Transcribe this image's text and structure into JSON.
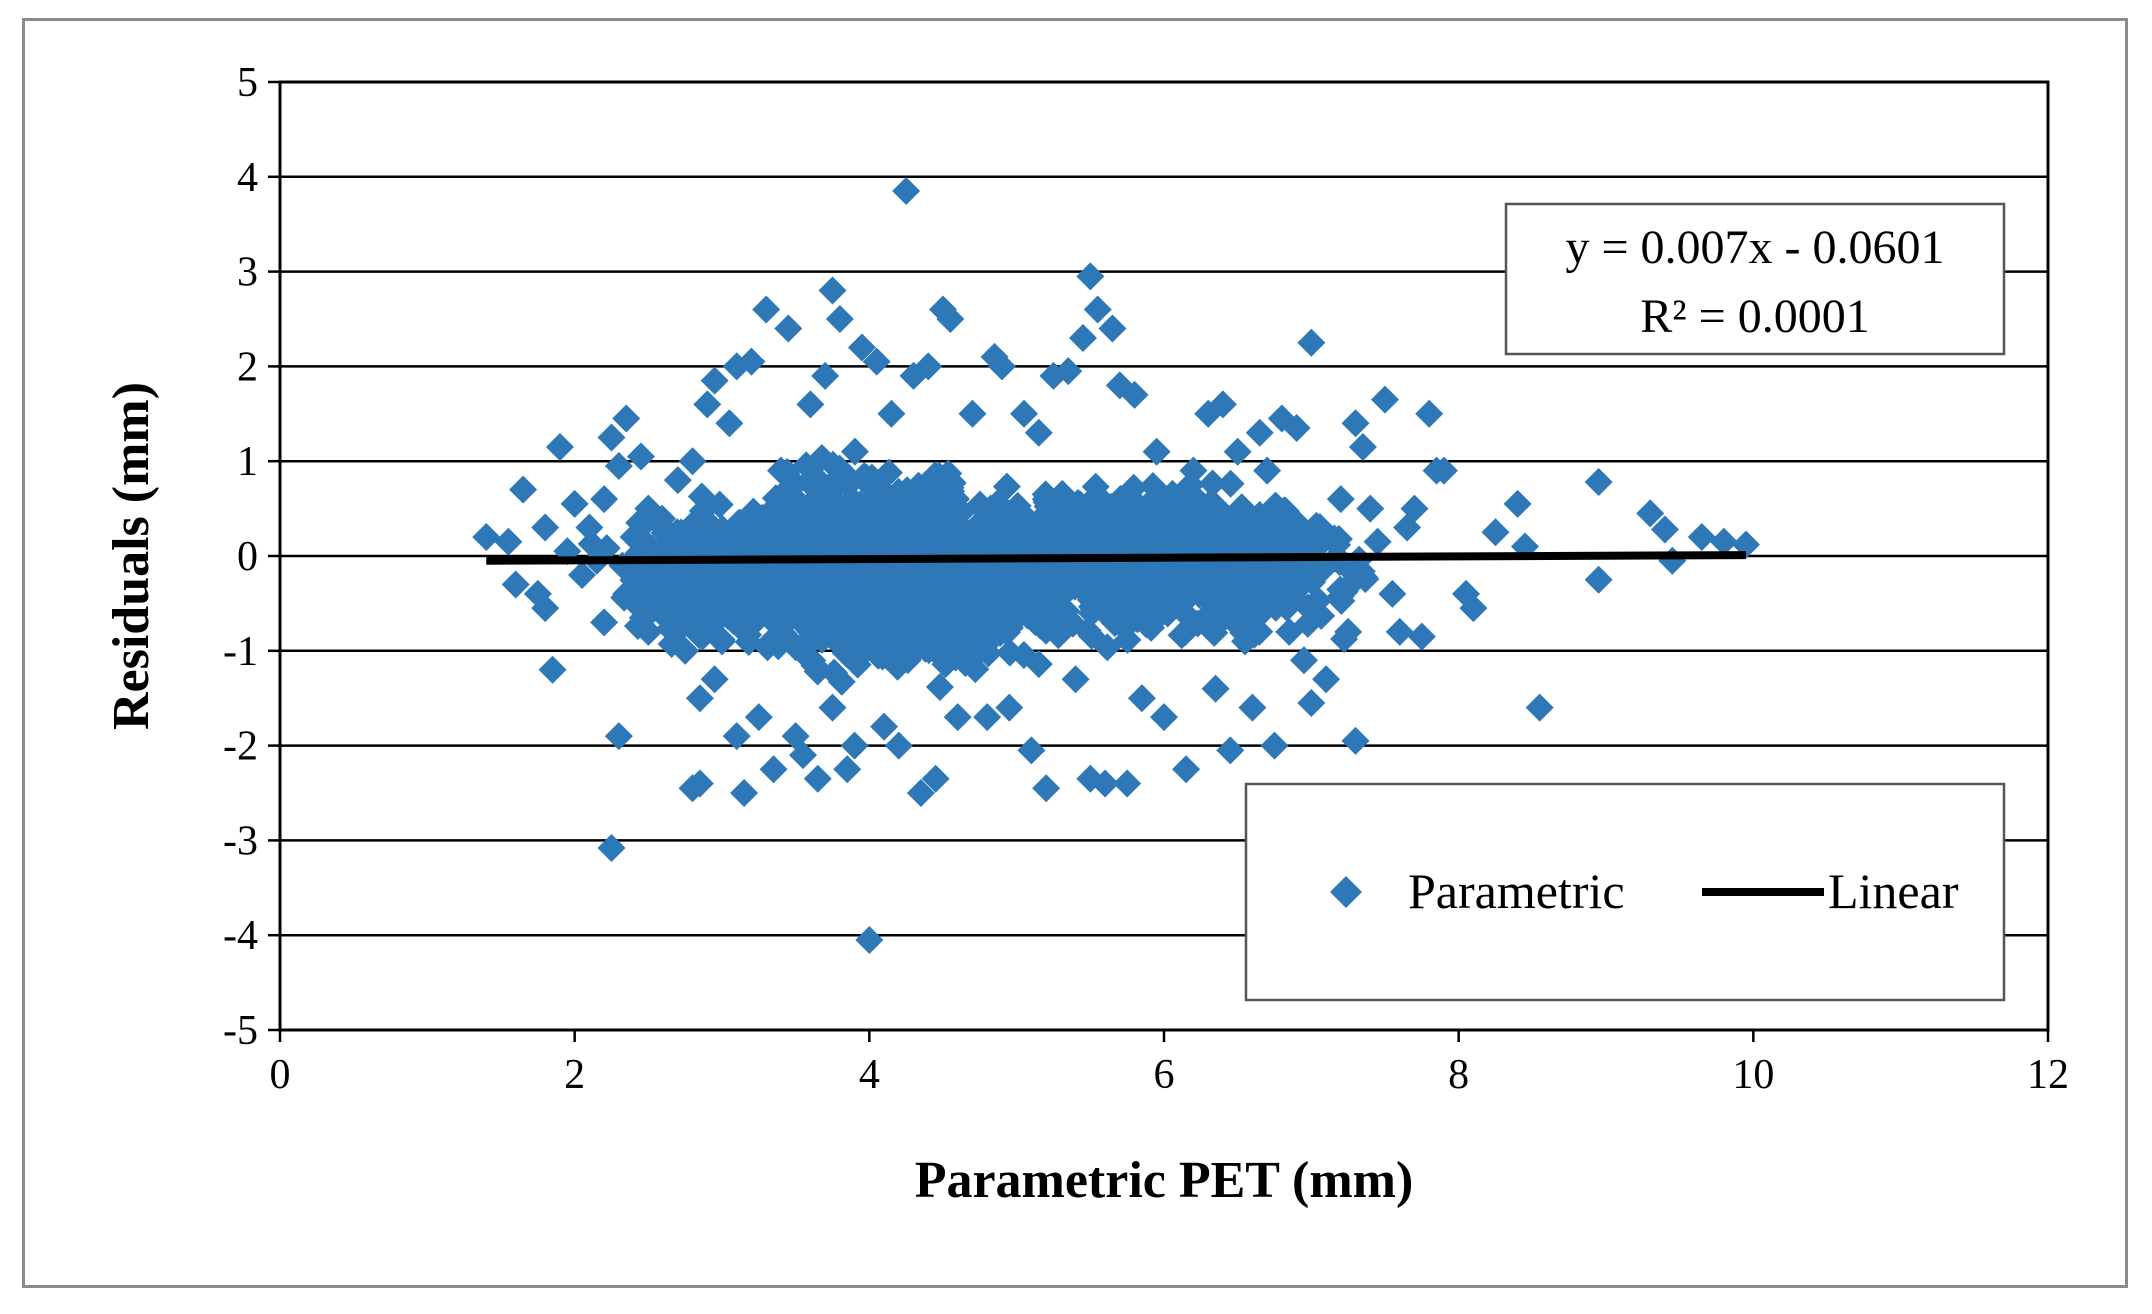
{
  "chart_data": {
    "type": "scatter",
    "xlabel": "Parametric PET (mm)",
    "ylabel": "Residuals (mm)",
    "xlim": [
      0,
      12
    ],
    "ylim": [
      -5,
      5
    ],
    "x_ticks": [
      0,
      2,
      4,
      6,
      8,
      10,
      12
    ],
    "y_ticks": [
      -5,
      -4,
      -3,
      -2,
      -1,
      0,
      1,
      2,
      3,
      4,
      5
    ],
    "grid": "horizontal",
    "legend_position": "bottom-right",
    "trendline": {
      "name": "Linear",
      "equation": "y = 0.007x - 0.0601",
      "r_squared": "R² = 0.0001",
      "slope": 0.007,
      "intercept": -0.0601,
      "x_range": [
        1.4,
        9.95
      ],
      "color": "#000000"
    },
    "series": [
      {
        "name": "Parametric",
        "marker": "diamond",
        "color": "#2E78B8",
        "points": [
          [
            1.4,
            0.2
          ],
          [
            1.55,
            0.15
          ],
          [
            1.6,
            -0.3
          ],
          [
            1.65,
            0.7
          ],
          [
            1.75,
            -0.4
          ],
          [
            1.8,
            0.3
          ],
          [
            1.8,
            -0.55
          ],
          [
            1.85,
            -1.2
          ],
          [
            1.9,
            1.15
          ],
          [
            1.95,
            0.05
          ],
          [
            2.0,
            0.55
          ],
          [
            2.05,
            -0.2
          ],
          [
            2.1,
            0.3
          ],
          [
            2.15,
            -0.05
          ],
          [
            2.2,
            -0.7
          ],
          [
            2.2,
            0.6
          ],
          [
            2.25,
            1.25
          ],
          [
            2.25,
            -3.08
          ],
          [
            2.3,
            -1.9
          ],
          [
            2.3,
            0.95
          ],
          [
            2.35,
            1.45
          ],
          [
            2.35,
            -0.4
          ],
          [
            2.4,
            0.2
          ],
          [
            2.45,
            1.05
          ],
          [
            2.5,
            -0.8
          ],
          [
            2.5,
            0.5
          ],
          [
            2.55,
            -0.1
          ],
          [
            2.6,
            0.3
          ],
          [
            2.65,
            -0.6
          ],
          [
            2.7,
            0.8
          ],
          [
            2.75,
            -1.0
          ],
          [
            2.8,
            -2.45
          ],
          [
            2.8,
            1.0
          ],
          [
            2.85,
            -1.5
          ],
          [
            2.85,
            -2.4
          ],
          [
            2.9,
            1.6
          ],
          [
            2.95,
            1.85
          ],
          [
            2.95,
            -1.3
          ],
          [
            3.0,
            -0.9
          ],
          [
            3.05,
            1.4
          ],
          [
            3.1,
            2.0
          ],
          [
            3.1,
            -1.9
          ],
          [
            3.15,
            -2.5
          ],
          [
            3.2,
            2.05
          ],
          [
            3.25,
            -1.7
          ],
          [
            3.3,
            2.6
          ],
          [
            3.35,
            -2.25
          ],
          [
            3.4,
            0.9
          ],
          [
            3.45,
            2.4
          ],
          [
            3.5,
            -1.9
          ],
          [
            3.55,
            -2.1
          ],
          [
            3.6,
            1.6
          ],
          [
            3.65,
            -2.35
          ],
          [
            3.7,
            1.9
          ],
          [
            3.75,
            2.8
          ],
          [
            3.75,
            -1.6
          ],
          [
            3.8,
            2.5
          ],
          [
            3.85,
            -2.25
          ],
          [
            3.9,
            -2.0
          ],
          [
            3.95,
            2.2
          ],
          [
            4.0,
            -4.05
          ],
          [
            4.05,
            2.05
          ],
          [
            4.1,
            -1.8
          ],
          [
            4.15,
            1.5
          ],
          [
            4.2,
            -2.0
          ],
          [
            4.25,
            3.85
          ],
          [
            4.3,
            1.9
          ],
          [
            4.35,
            -2.5
          ],
          [
            4.4,
            2.0
          ],
          [
            4.45,
            -2.35
          ],
          [
            4.5,
            2.6
          ],
          [
            4.55,
            2.5
          ],
          [
            4.6,
            -1.7
          ],
          [
            4.7,
            1.5
          ],
          [
            4.8,
            -1.7
          ],
          [
            4.85,
            2.1
          ],
          [
            4.9,
            2.0
          ],
          [
            4.95,
            -1.6
          ],
          [
            5.05,
            1.5
          ],
          [
            5.1,
            -2.05
          ],
          [
            5.15,
            1.3
          ],
          [
            5.2,
            -2.45
          ],
          [
            5.25,
            1.9
          ],
          [
            5.35,
            1.95
          ],
          [
            5.4,
            -1.3
          ],
          [
            5.45,
            2.3
          ],
          [
            5.5,
            2.95
          ],
          [
            5.5,
            -2.35
          ],
          [
            5.55,
            2.6
          ],
          [
            5.6,
            -2.4
          ],
          [
            5.65,
            2.4
          ],
          [
            5.7,
            1.8
          ],
          [
            5.75,
            -2.4
          ],
          [
            5.8,
            1.7
          ],
          [
            5.85,
            -1.5
          ],
          [
            5.95,
            1.1
          ],
          [
            6.0,
            -1.7
          ],
          [
            6.1,
            0.6
          ],
          [
            6.15,
            -2.25
          ],
          [
            6.2,
            0.9
          ],
          [
            6.3,
            1.5
          ],
          [
            6.35,
            -1.4
          ],
          [
            6.4,
            1.6
          ],
          [
            6.45,
            -2.05
          ],
          [
            6.5,
            1.1
          ],
          [
            6.55,
            -0.9
          ],
          [
            6.6,
            -1.6
          ],
          [
            6.65,
            1.3
          ],
          [
            6.7,
            0.9
          ],
          [
            6.75,
            -2.0
          ],
          [
            6.8,
            1.45
          ],
          [
            6.85,
            -0.8
          ],
          [
            6.9,
            1.35
          ],
          [
            6.95,
            -1.1
          ],
          [
            7.0,
            2.25
          ],
          [
            7.0,
            -1.55
          ],
          [
            7.05,
            0.2
          ],
          [
            7.1,
            -1.3
          ],
          [
            7.2,
            0.6
          ],
          [
            7.25,
            -0.8
          ],
          [
            7.3,
            1.4
          ],
          [
            7.3,
            -1.95
          ],
          [
            7.35,
            1.15
          ],
          [
            7.4,
            0.5
          ],
          [
            7.45,
            0.15
          ],
          [
            7.5,
            1.65
          ],
          [
            7.55,
            -0.4
          ],
          [
            7.6,
            -0.8
          ],
          [
            7.65,
            0.3
          ],
          [
            7.7,
            0.5
          ],
          [
            7.75,
            -0.85
          ],
          [
            7.8,
            1.5
          ],
          [
            7.85,
            0.9
          ],
          [
            7.9,
            0.9
          ],
          [
            8.05,
            -0.4
          ],
          [
            8.1,
            -0.55
          ],
          [
            8.25,
            0.25
          ],
          [
            8.4,
            0.55
          ],
          [
            8.45,
            0.1
          ],
          [
            8.55,
            -1.6
          ],
          [
            8.95,
            -0.25
          ],
          [
            8.95,
            0.78
          ],
          [
            9.3,
            0.45
          ],
          [
            9.4,
            0.28
          ],
          [
            9.45,
            -0.05
          ],
          [
            9.65,
            0.2
          ],
          [
            9.8,
            0.15
          ],
          [
            9.95,
            0.12
          ]
        ]
      }
    ]
  }
}
